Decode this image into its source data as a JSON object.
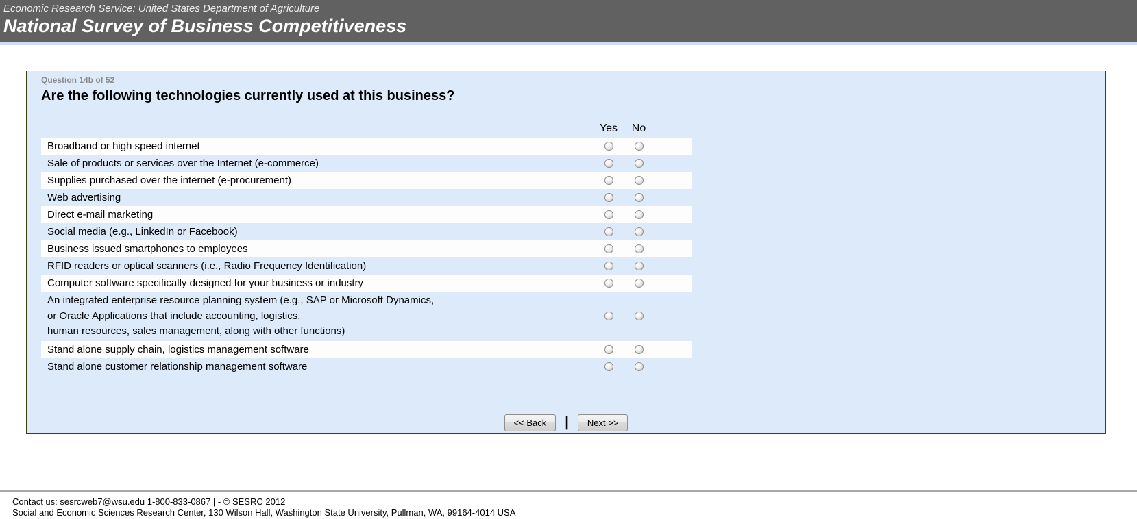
{
  "header": {
    "agency": "Economic Research Service: United States Department of Agriculture",
    "title": "National Survey of Business Competitiveness"
  },
  "question": {
    "progress": "Question 14b of 52",
    "title": "Are the following technologies currently used at this business?",
    "columns": {
      "yes": "Yes",
      "no": "No"
    },
    "items": [
      {
        "label": "Broadband or high speed internet",
        "yes_checked": false,
        "no_checked": false
      },
      {
        "label": "Sale of products or services over the Internet (e-commerce)",
        "yes_checked": false,
        "no_checked": false
      },
      {
        "label": "Supplies purchased over the internet (e-procurement)",
        "yes_checked": false,
        "no_checked": false
      },
      {
        "label": "Web advertising",
        "yes_checked": false,
        "no_checked": false
      },
      {
        "label": "Direct e-mail marketing",
        "yes_checked": false,
        "no_checked": false
      },
      {
        "label": "Social media (e.g., LinkedIn or Facebook)",
        "yes_checked": false,
        "no_checked": false
      },
      {
        "label": "Business issued smartphones to employees",
        "yes_checked": false,
        "no_checked": false
      },
      {
        "label": "RFID readers or optical scanners (i.e., Radio Frequency Identification)",
        "yes_checked": false,
        "no_checked": false
      },
      {
        "label": "Computer software specifically designed for your business or industry",
        "yes_checked": false,
        "no_checked": false
      },
      {
        "label": "An integrated enterprise resource planning system (e.g., SAP or Microsoft Dynamics,\nor Oracle Applications that include accounting, logistics,\nhuman resources, sales management, along with other functions)",
        "yes_checked": false,
        "no_checked": false
      },
      {
        "label": "Stand alone supply chain, logistics management software",
        "yes_checked": false,
        "no_checked": false
      },
      {
        "label": "Stand alone customer relationship management software",
        "yes_checked": false,
        "no_checked": false
      }
    ]
  },
  "buttons": {
    "back": "<< Back",
    "separator": "|",
    "next": "Next >>"
  },
  "footer": {
    "line1": "Contact us: sesrcweb7@wsu.edu 1-800-833-0867 | - © SESRC 2012",
    "line2": "Social and Economic Sciences Research Center, 130 Wilson Hall, Washington State University, Pullman, WA, 99164-4014 USA"
  },
  "colors": {
    "header_bg": "#616161",
    "accent_strip": "#cdddf2",
    "panel_bg": "#dceafa",
    "panel_border": "#3a4214",
    "row_stripe": "#fdfdfd"
  }
}
